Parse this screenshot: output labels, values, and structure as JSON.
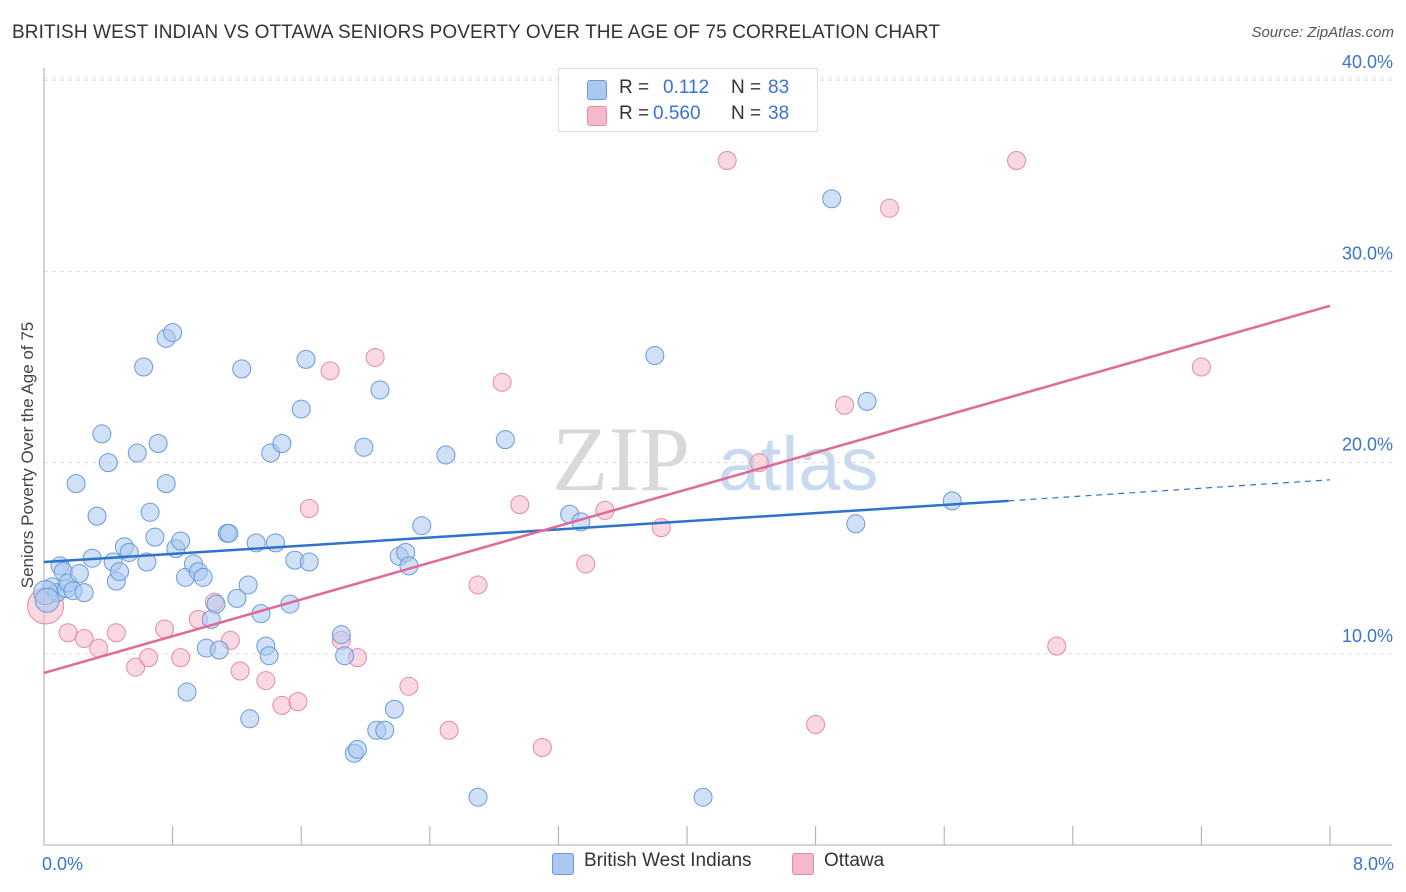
{
  "header": {
    "title": "BRITISH WEST INDIAN VS OTTAWA SENIORS POVERTY OVER THE AGE OF 75 CORRELATION CHART",
    "source": "Source: ZipAtlas.com"
  },
  "watermark": {
    "part1": "ZIP",
    "part2": "atlas"
  },
  "colors": {
    "blue_fill": "#aac8f0",
    "blue_stroke": "#6a9ad8",
    "blue_line": "#2f72cc",
    "pink_fill": "#f6b8cb",
    "pink_stroke": "#e58aa8",
    "pink_line": "#e06a96",
    "tick_label": "#3b74d0",
    "grid": "#dddddd"
  },
  "legend": {
    "rows": [
      {
        "r_label": "R =",
        "r_value": "0.112",
        "n_label": "N =",
        "n_value": "83"
      },
      {
        "r_label": "R =",
        "r_value": "0.560",
        "n_label": "N =",
        "n_value": "38"
      }
    ]
  },
  "bottom_legend": [
    "British West Indians",
    "Ottawa"
  ],
  "chart_data": {
    "type": "scatter",
    "title": "BRITISH WEST INDIAN VS OTTAWA SENIORS POVERTY OVER THE AGE OF 75 CORRELATION CHART",
    "xlabel": "",
    "ylabel": "Seniors Poverty Over the Age of 75",
    "xlim": [
      0,
      8
    ],
    "ylim": [
      0,
      40
    ],
    "x_tick_labels": [
      {
        "value": 0,
        "label": "0.0%"
      },
      {
        "value": 8,
        "label": "8.0%"
      }
    ],
    "y_tick_labels": [
      {
        "value": 10,
        "label": "10.0%"
      },
      {
        "value": 20,
        "label": "20.0%"
      },
      {
        "value": 30,
        "label": "30.0%"
      },
      {
        "value": 40,
        "label": "40.0%"
      }
    ],
    "series": [
      {
        "name": "British West Indians",
        "R": 0.112,
        "N": 83,
        "trend": {
          "x0": 0,
          "y0": 14.8,
          "x1": 6.0,
          "y1": 18.0,
          "dash_to_x": 8.0,
          "dash_to_y": 19.1
        },
        "points": [
          [
            0.05,
            13.5
          ],
          [
            0.08,
            13.2
          ],
          [
            0.1,
            14.6
          ],
          [
            0.12,
            14.3
          ],
          [
            0.14,
            13.4
          ],
          [
            0.15,
            13.7
          ],
          [
            0.18,
            13.3
          ],
          [
            0.2,
            18.9
          ],
          [
            0.22,
            14.2
          ],
          [
            0.25,
            13.2
          ],
          [
            0.3,
            15.0
          ],
          [
            0.33,
            17.2
          ],
          [
            0.36,
            21.5
          ],
          [
            0.4,
            20.0
          ],
          [
            0.43,
            14.8
          ],
          [
            0.45,
            13.8
          ],
          [
            0.47,
            14.3
          ],
          [
            0.5,
            15.6
          ],
          [
            0.53,
            15.3
          ],
          [
            0.58,
            20.5
          ],
          [
            0.62,
            25.0
          ],
          [
            0.64,
            14.8
          ],
          [
            0.66,
            17.4
          ],
          [
            0.69,
            16.1
          ],
          [
            0.71,
            21.0
          ],
          [
            0.76,
            18.9
          ],
          [
            0.76,
            26.5
          ],
          [
            0.8,
            26.8
          ],
          [
            0.82,
            15.5
          ],
          [
            0.85,
            15.9
          ],
          [
            0.88,
            14.0
          ],
          [
            0.89,
            8.0
          ],
          [
            0.93,
            14.7
          ],
          [
            0.96,
            14.3
          ],
          [
            0.99,
            14.0
          ],
          [
            1.01,
            10.3
          ],
          [
            1.04,
            11.8
          ],
          [
            1.07,
            12.6
          ],
          [
            1.09,
            10.2
          ],
          [
            1.14,
            16.3
          ],
          [
            1.15,
            16.3
          ],
          [
            1.2,
            12.9
          ],
          [
            1.23,
            24.9
          ],
          [
            1.27,
            13.6
          ],
          [
            1.28,
            6.6
          ],
          [
            1.32,
            15.8
          ],
          [
            1.35,
            12.1
          ],
          [
            1.38,
            10.4
          ],
          [
            1.4,
            9.9
          ],
          [
            1.41,
            20.5
          ],
          [
            1.44,
            15.8
          ],
          [
            1.48,
            21.0
          ],
          [
            1.53,
            12.6
          ],
          [
            1.56,
            14.9
          ],
          [
            1.6,
            22.8
          ],
          [
            1.63,
            25.4
          ],
          [
            1.65,
            14.8
          ],
          [
            1.85,
            11.0
          ],
          [
            1.87,
            9.9
          ],
          [
            1.93,
            4.8
          ],
          [
            1.95,
            5.0
          ],
          [
            1.99,
            20.8
          ],
          [
            2.07,
            6.0
          ],
          [
            2.09,
            23.8
          ],
          [
            2.12,
            6.0
          ],
          [
            2.18,
            7.1
          ],
          [
            2.21,
            15.1
          ],
          [
            2.25,
            15.3
          ],
          [
            2.27,
            14.6
          ],
          [
            2.35,
            16.7
          ],
          [
            2.5,
            20.4
          ],
          [
            2.7,
            2.5
          ],
          [
            2.87,
            21.2
          ],
          [
            3.27,
            17.3
          ],
          [
            3.34,
            16.9
          ],
          [
            3.8,
            25.6
          ],
          [
            4.1,
            2.5
          ],
          [
            4.9,
            33.8
          ],
          [
            5.05,
            16.8
          ],
          [
            5.12,
            23.2
          ],
          [
            5.65,
            18.0
          ],
          [
            0.01,
            13.2
          ],
          [
            0.02,
            12.8
          ]
        ]
      },
      {
        "name": "Ottawa",
        "R": 0.56,
        "N": 38,
        "trend": {
          "x0": 0,
          "y0": 9.0,
          "x1": 8.0,
          "y1": 28.2
        },
        "points": [
          [
            0.01,
            12.5
          ],
          [
            0.15,
            11.1
          ],
          [
            0.25,
            10.8
          ],
          [
            0.34,
            10.3
          ],
          [
            0.45,
            11.1
          ],
          [
            0.57,
            9.3
          ],
          [
            0.65,
            9.8
          ],
          [
            0.75,
            11.3
          ],
          [
            0.85,
            9.8
          ],
          [
            0.96,
            11.8
          ],
          [
            1.06,
            12.7
          ],
          [
            1.16,
            10.7
          ],
          [
            1.22,
            9.1
          ],
          [
            1.38,
            8.6
          ],
          [
            1.48,
            7.3
          ],
          [
            1.58,
            7.5
          ],
          [
            1.65,
            17.6
          ],
          [
            1.78,
            24.8
          ],
          [
            1.85,
            10.7
          ],
          [
            1.95,
            9.8
          ],
          [
            2.06,
            25.5
          ],
          [
            2.27,
            8.3
          ],
          [
            2.52,
            6.0
          ],
          [
            2.7,
            13.6
          ],
          [
            2.85,
            24.2
          ],
          [
            2.96,
            17.8
          ],
          [
            3.1,
            5.1
          ],
          [
            3.37,
            14.7
          ],
          [
            3.49,
            17.5
          ],
          [
            3.84,
            16.6
          ],
          [
            4.25,
            35.8
          ],
          [
            4.45,
            20.0
          ],
          [
            4.8,
            6.3
          ],
          [
            4.98,
            23.0
          ],
          [
            5.26,
            33.3
          ],
          [
            6.05,
            35.8
          ],
          [
            6.3,
            10.4
          ],
          [
            7.2,
            25.0
          ]
        ]
      }
    ]
  }
}
